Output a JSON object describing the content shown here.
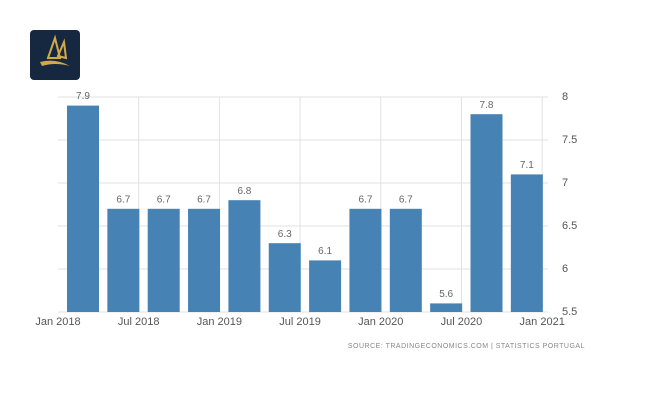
{
  "chart_data": {
    "type": "bar",
    "values": [
      7.9,
      6.7,
      6.7,
      6.7,
      6.8,
      6.3,
      6.1,
      6.7,
      6.7,
      5.6,
      7.8,
      7.1
    ],
    "xtick_labels": [
      "Jan 2018",
      "Jul 2018",
      "Jan 2019",
      "Jul 2019",
      "Jan 2020",
      "Jul 2020",
      "Jan 2021"
    ],
    "color": "#4682b4",
    "ylim": [
      5.5,
      8
    ],
    "yticks": [
      5.5,
      6,
      6.5,
      7,
      7.5,
      8
    ],
    "grid": true,
    "source": "SOURCE: TRADINGECONOMICS.COM | STATISTICS PORTUGAL"
  }
}
